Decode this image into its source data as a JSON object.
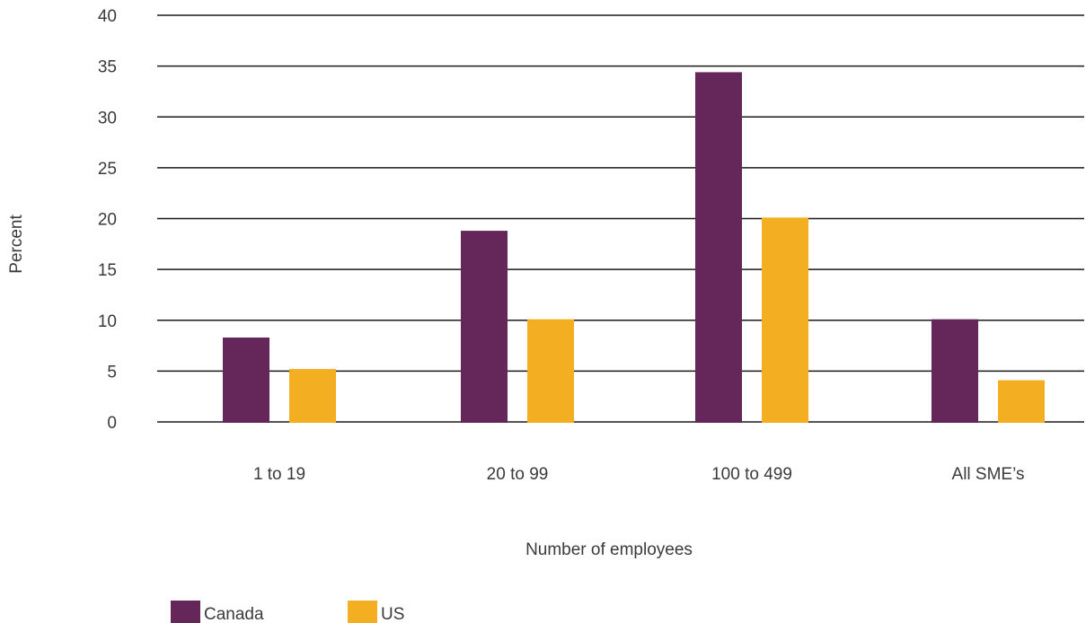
{
  "chart_data": {
    "type": "bar",
    "categories": [
      "1 to 19",
      "20 to 99",
      "100 to 499",
      "All SME’s"
    ],
    "series": [
      {
        "name": "Canada",
        "color": "#652659",
        "values": [
          8.3,
          18.8,
          34.4,
          10.1
        ]
      },
      {
        "name": "US",
        "color": "#F3AE22",
        "values": [
          5.2,
          10.1,
          20.1,
          4.1
        ]
      }
    ],
    "xlabel": "Number of employees",
    "ylabel": "Percent",
    "ylim": [
      0,
      40
    ],
    "yticks": [
      0,
      5,
      10,
      15,
      20,
      25,
      30,
      35,
      40
    ],
    "grid": true,
    "legend_position": "bottom-left"
  }
}
